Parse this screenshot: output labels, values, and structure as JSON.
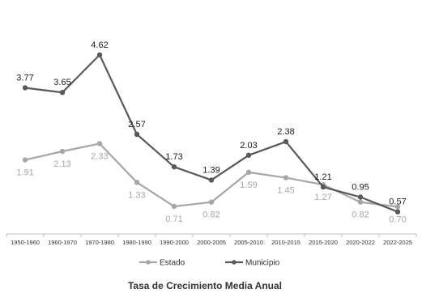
{
  "chart_data": {
    "type": "line",
    "title": "Tasa de Crecimiento Media Anual",
    "categories": [
      "1950-1960",
      "1960-1970",
      "1970-1980",
      "1980-1990",
      "1990-2000",
      "2000-2005",
      "2005-2010",
      "2010-2015",
      "2015-2020",
      "2020-2022",
      "2022-2025"
    ],
    "series": [
      {
        "name": "Estado",
        "values": [
          1.91,
          2.13,
          2.33,
          1.33,
          0.71,
          0.82,
          1.59,
          1.45,
          1.27,
          0.82,
          0.7
        ],
        "labels": [
          "1.91",
          "2.13",
          "2.33",
          "1.33",
          "0.71",
          "0.82",
          "1.59",
          "1.45",
          "1.27",
          "0.82",
          "0.70"
        ],
        "color": "#a6a6a6",
        "label_position": "below"
      },
      {
        "name": "Municipio",
        "values": [
          3.77,
          3.65,
          4.62,
          2.57,
          1.73,
          1.39,
          2.03,
          2.38,
          1.21,
          0.95,
          0.57
        ],
        "labels": [
          "3.77",
          "3.65",
          "4.62",
          "2.57",
          "1.73",
          "1.39",
          "2.03",
          "2.38",
          "1.21",
          "0.95",
          "0.57"
        ],
        "color": "#595959",
        "label_position": "above"
      }
    ],
    "ylim": [
      0,
      5.2
    ],
    "grid": false,
    "legend_position": "bottom"
  }
}
